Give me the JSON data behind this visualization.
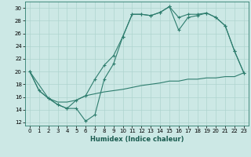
{
  "xlabel": "Humidex (Indice chaleur)",
  "bg_color": "#cce8e5",
  "line_color": "#2e7d6e",
  "grid_color": "#aed4cf",
  "xlim": [
    -0.5,
    23.5
  ],
  "ylim": [
    11.5,
    31.0
  ],
  "xticks": [
    0,
    1,
    2,
    3,
    4,
    5,
    6,
    7,
    8,
    9,
    10,
    11,
    12,
    13,
    14,
    15,
    16,
    17,
    18,
    19,
    20,
    21,
    22,
    23
  ],
  "yticks": [
    12,
    14,
    16,
    18,
    20,
    22,
    24,
    26,
    28,
    30
  ],
  "line1_x": [
    0,
    1,
    2,
    3,
    4,
    5,
    6,
    7,
    8,
    9,
    10,
    11,
    12,
    13,
    14,
    15,
    16,
    17,
    18,
    19,
    20,
    21,
    22,
    23
  ],
  "line1_y": [
    20.0,
    17.0,
    15.8,
    14.8,
    14.2,
    14.2,
    12.2,
    13.2,
    18.8,
    21.2,
    25.5,
    29.0,
    29.0,
    28.8,
    29.3,
    30.2,
    28.5,
    29.0,
    29.0,
    29.2,
    28.5,
    27.2,
    23.2,
    19.8
  ],
  "line2_x": [
    0,
    2,
    3,
    4,
    5,
    6,
    7,
    8,
    9,
    10,
    11,
    12,
    13,
    14,
    15,
    16,
    17,
    18,
    19,
    20,
    21,
    22,
    23
  ],
  "line2_y": [
    20.0,
    15.8,
    14.8,
    14.2,
    15.5,
    16.2,
    18.8,
    21.0,
    22.5,
    25.5,
    29.0,
    29.0,
    28.8,
    29.3,
    30.2,
    26.5,
    28.5,
    28.8,
    29.2,
    28.5,
    27.2,
    23.2,
    19.8
  ],
  "line3_x": [
    0,
    1,
    2,
    3,
    4,
    5,
    6,
    7,
    8,
    9,
    10,
    11,
    12,
    13,
    14,
    15,
    16,
    17,
    18,
    19,
    20,
    21,
    22,
    23
  ],
  "line3_y": [
    20.0,
    17.0,
    15.8,
    15.2,
    15.2,
    15.5,
    16.2,
    16.5,
    16.8,
    17.0,
    17.2,
    17.5,
    17.8,
    18.0,
    18.2,
    18.5,
    18.5,
    18.8,
    18.8,
    19.0,
    19.0,
    19.2,
    19.2,
    19.8
  ],
  "xlabel_fontsize": 6.0,
  "tick_fontsize": 5.0
}
